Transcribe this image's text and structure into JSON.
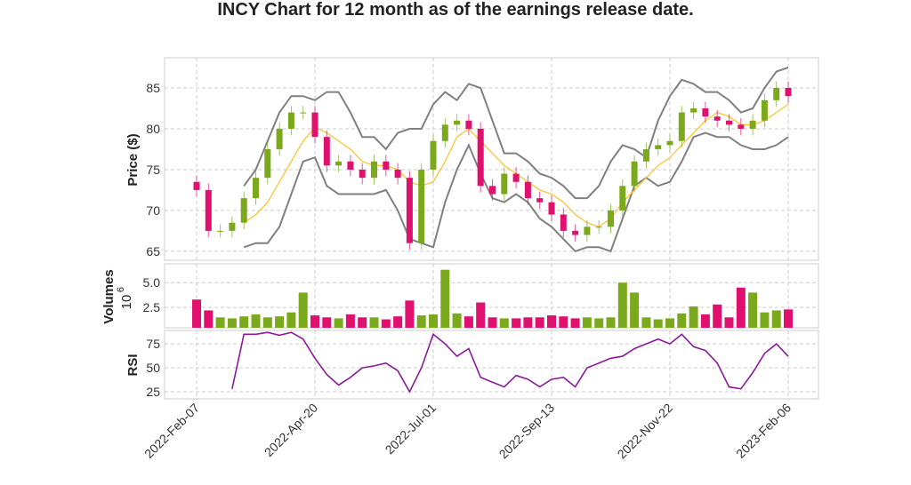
{
  "chart_data": {
    "type": "candlestick",
    "title": "INCY Chart for 12 month as of the earnings release date.",
    "x_ticks": [
      "2022-Feb-07",
      "2022-Apr-20",
      "2022-Jul-01",
      "2022-Sep-13",
      "2022-Nov-22",
      "2023-Feb-06"
    ],
    "price": {
      "ylabel": "Price ($)",
      "ylim": [
        63.9,
        88.7
      ],
      "yticks": [
        65,
        70,
        75,
        80,
        85
      ],
      "first_open": 73.5,
      "close": [
        72.5,
        67.5,
        67.5,
        68.5,
        71.5,
        74,
        77.5,
        80,
        82,
        82,
        79,
        75.5,
        76,
        75,
        74,
        76,
        75,
        74,
        66,
        75,
        78.5,
        80.5,
        81,
        80,
        73,
        72,
        74.5,
        73.5,
        71.5,
        71,
        69.5,
        67.5,
        67,
        68,
        68,
        70,
        73,
        76,
        77.5,
        78,
        78.5,
        82,
        82.5,
        81.5,
        81,
        80.5,
        80,
        81,
        83.5,
        85,
        84
      ],
      "ma": [
        null,
        null,
        null,
        null,
        68.5,
        69.5,
        71,
        73.5,
        76,
        78.5,
        80.2,
        79.5,
        78.5,
        77.5,
        76,
        75.5,
        75.5,
        75,
        73.5,
        73,
        73.5,
        76,
        79,
        80,
        78.5,
        77,
        75.5,
        74.5,
        73.5,
        72.5,
        72,
        71,
        69.5,
        68.5,
        68,
        69,
        71,
        72.5,
        74,
        75.5,
        76.5,
        78,
        79.5,
        81,
        82,
        81.5,
        80.5,
        80.5,
        81,
        82,
        83
      ],
      "upper": [
        null,
        null,
        null,
        null,
        73,
        75,
        78.5,
        82,
        84,
        84,
        83.5,
        84.5,
        84.5,
        82,
        79,
        79,
        77.5,
        79.5,
        80,
        80,
        83,
        84.5,
        83.5,
        85.5,
        85,
        81,
        77,
        77,
        76,
        74.5,
        74,
        73,
        71.5,
        71.5,
        73,
        76,
        78,
        77.5,
        76.5,
        81,
        84,
        86,
        85.5,
        84.5,
        84.5,
        83.5,
        82,
        82.5,
        85,
        87,
        87.5
      ],
      "lower": [
        null,
        null,
        null,
        null,
        65.5,
        66,
        66,
        68,
        72,
        76,
        76.5,
        73,
        72,
        72,
        72,
        72,
        72.5,
        70,
        66.5,
        66,
        65.5,
        71,
        75,
        78,
        74.5,
        71.5,
        71,
        72,
        71,
        69,
        68,
        66.5,
        65,
        65.5,
        65.5,
        65,
        69,
        73,
        74,
        73,
        73.5,
        76,
        79,
        79.5,
        79,
        79,
        78,
        77.5,
        77.5,
        78,
        79
      ]
    },
    "volume": {
      "ylabel": "Volumes",
      "scale_label": "10",
      "scale_exp": "6",
      "ylim": [
        0.45,
        6.9
      ],
      "yticks": [
        "2.5",
        "5.0"
      ],
      "ytick_values": [
        2.5,
        5.0
      ],
      "values": [
        3.3,
        2.2,
        1.5,
        1.4,
        1.6,
        1.8,
        1.5,
        1.6,
        2.0,
        4.0,
        1.7,
        1.5,
        1.4,
        1.8,
        1.5,
        1.5,
        1.3,
        1.6,
        3.2,
        1.7,
        1.8,
        6.3,
        1.9,
        1.6,
        3.0,
        1.5,
        1.4,
        1.4,
        1.5,
        1.5,
        1.7,
        1.6,
        1.4,
        1.5,
        1.4,
        1.5,
        5.0,
        4.0,
        1.5,
        1.3,
        1.4,
        1.9,
        2.6,
        1.8,
        2.8,
        1.5,
        4.5,
        4.0,
        2.0,
        2.2,
        2.3
      ]
    },
    "rsi": {
      "ylabel": "RSI",
      "ylim": [
        17.6,
        89
      ],
      "yticks": [
        25,
        50,
        75
      ],
      "values": [
        null,
        null,
        null,
        28,
        85,
        85,
        87,
        84,
        87,
        80,
        60,
        43,
        32,
        40,
        50,
        52,
        55,
        47,
        25,
        50,
        85,
        75,
        62,
        70,
        40,
        35,
        30,
        42,
        38,
        30,
        38,
        40,
        30,
        50,
        55,
        60,
        62,
        70,
        75,
        80,
        75,
        85,
        72,
        68,
        55,
        30,
        28,
        45,
        65,
        75,
        62
      ]
    },
    "colors": {
      "up": "#7ba91c",
      "down": "#e0106e",
      "ma": "#ffc125",
      "bands": "#808080",
      "rsi": "#8b1a9b"
    }
  }
}
